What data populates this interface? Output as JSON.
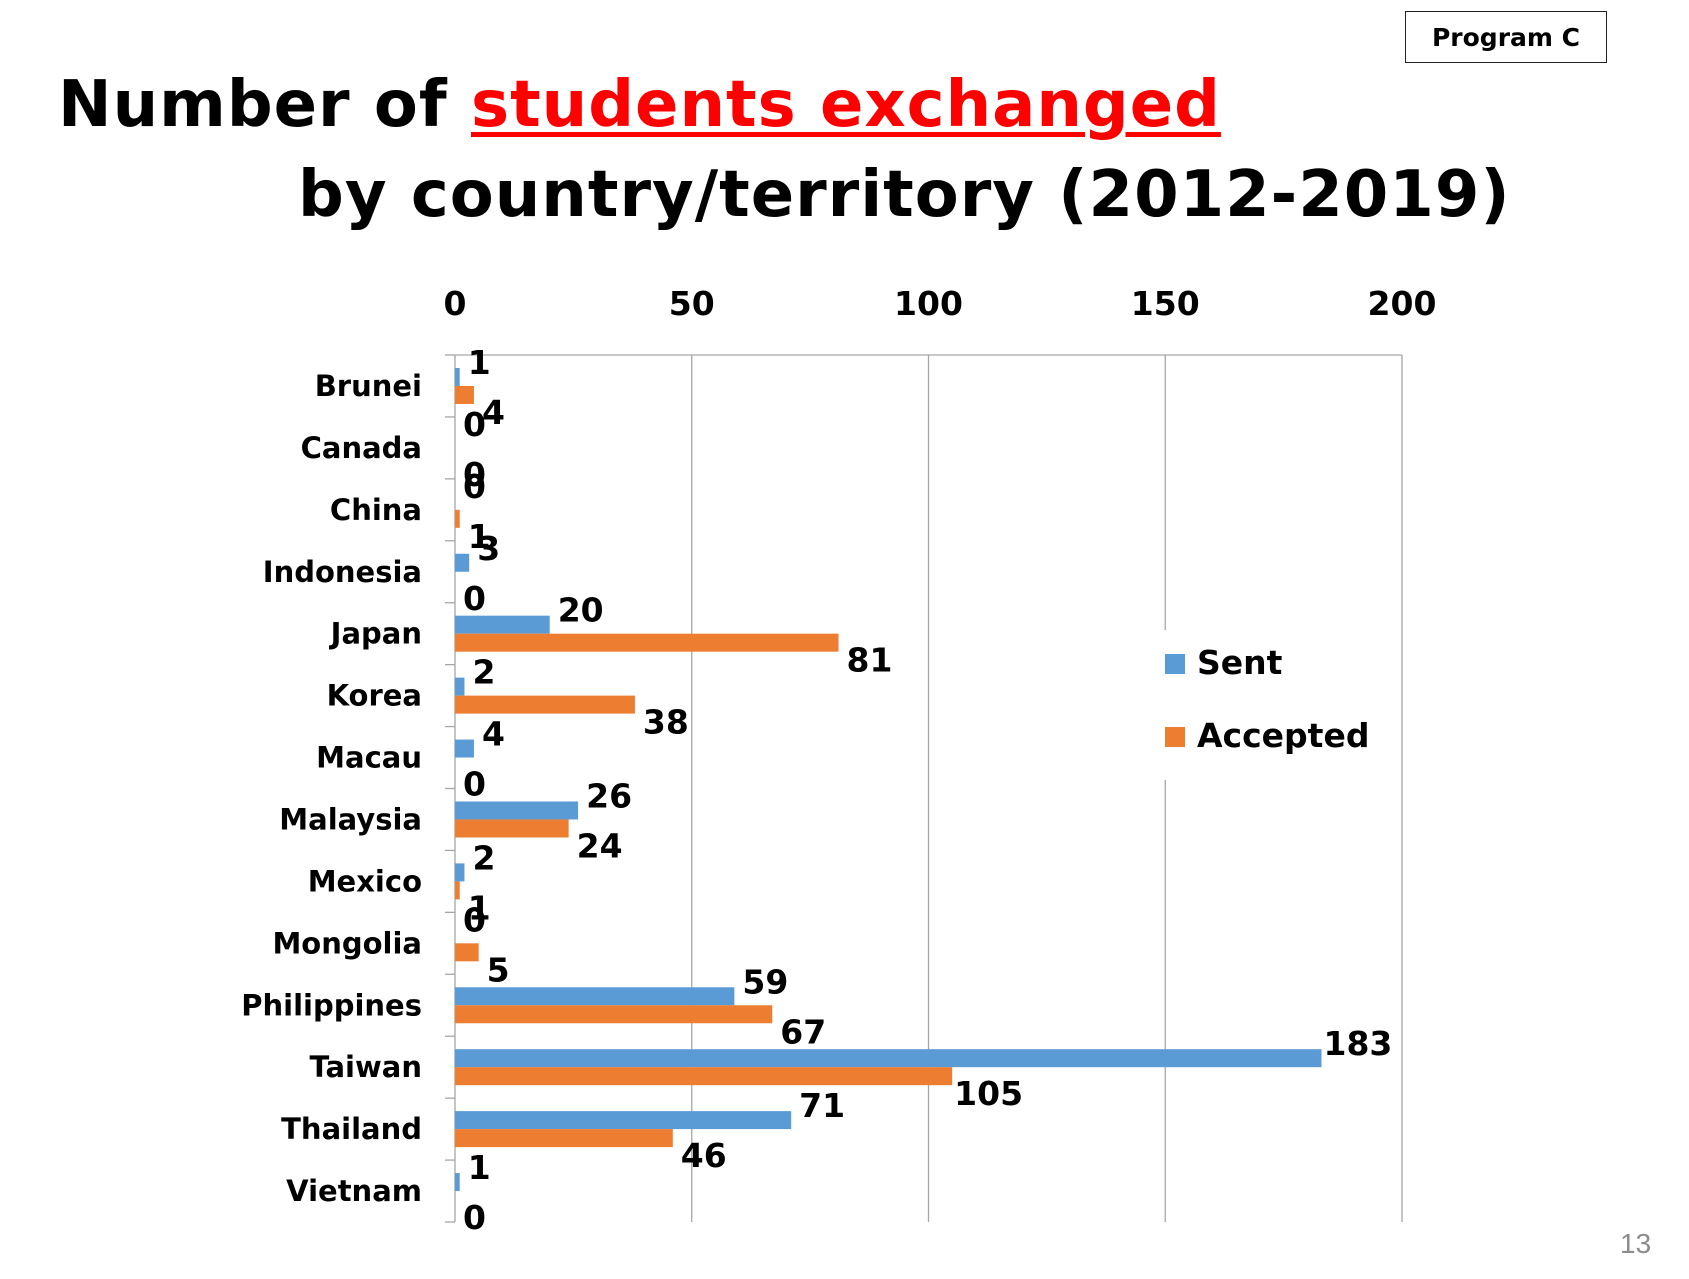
{
  "badge": {
    "label": "Program C"
  },
  "title": {
    "part1": "Number of ",
    "highlight": "students exchanged",
    "line2": "by country/territory (2012-2019)"
  },
  "page_number": "13",
  "colors": {
    "sent": "#5b9bd5",
    "accepted": "#ed7d31",
    "title_highlight": "#ff0000",
    "grid": "#a6a6a6"
  },
  "chart_data": {
    "type": "bar",
    "orientation": "horizontal",
    "categories": [
      "Brunei",
      "Canada",
      "China",
      "Indonesia",
      "Japan",
      "Korea",
      "Macau",
      "Malaysia",
      "Mexico",
      "Mongolia",
      "Philippines",
      "Taiwan",
      "Thailand",
      "Vietnam"
    ],
    "series": [
      {
        "name": "Sent",
        "color": "#5b9bd5",
        "values": [
          1,
          0,
          0,
          3,
          20,
          2,
          4,
          26,
          2,
          0,
          59,
          183,
          71,
          1
        ]
      },
      {
        "name": "Accepted",
        "color": "#ed7d31",
        "values": [
          4,
          0,
          1,
          0,
          81,
          38,
          0,
          24,
          1,
          5,
          67,
          105,
          46,
          0
        ]
      }
    ],
    "xlim": [
      0,
      200
    ],
    "x_ticks": [
      "0",
      "50",
      "100",
      "150",
      "200"
    ],
    "x_axis_position": "top",
    "grid": true,
    "legend": "right",
    "data_labels": true
  }
}
